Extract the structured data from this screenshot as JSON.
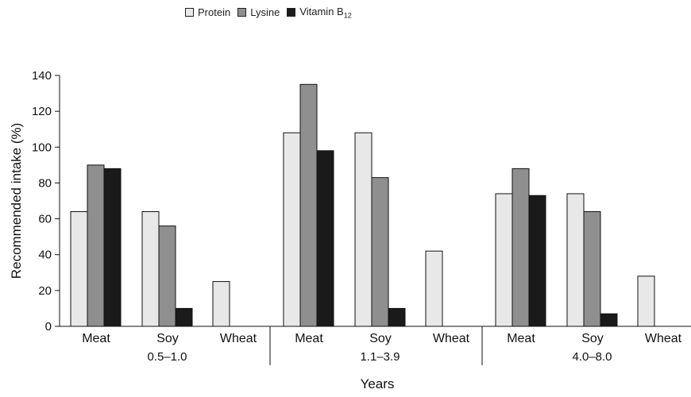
{
  "chart_data": {
    "type": "bar",
    "title": "",
    "xlabel": "Years",
    "ylabel": "Recommended intake (%)",
    "ylim": [
      0,
      140
    ],
    "yticks": [
      0,
      20,
      40,
      60,
      80,
      100,
      120,
      140
    ],
    "groups": [
      {
        "label": "0.5–1.0",
        "categories": [
          "Meat",
          "Soy",
          "Wheat"
        ]
      },
      {
        "label": "1.1–3.9",
        "categories": [
          "Meat",
          "Soy",
          "Wheat"
        ]
      },
      {
        "label": "4.0–8.0",
        "categories": [
          "Meat",
          "Soy",
          "Wheat"
        ]
      }
    ],
    "series": [
      {
        "name": "Protein",
        "color": "#e8e8e8",
        "values": [
          64,
          64,
          25,
          108,
          108,
          42,
          74,
          74,
          28
        ]
      },
      {
        "name": "Lysine",
        "color": "#8f8f8f",
        "values": [
          90,
          56,
          0,
          135,
          83,
          0,
          88,
          64,
          0
        ]
      },
      {
        "name": "Vitamin B12",
        "color": "#1a1a1a",
        "values": [
          88,
          10,
          0,
          98,
          10,
          0,
          73,
          7,
          0
        ]
      }
    ],
    "legend": {
      "placement": "top",
      "items": [
        {
          "base": "Protein",
          "sub": ""
        },
        {
          "base": "Lysine",
          "sub": ""
        },
        {
          "base": "Vitamin B",
          "sub": "12"
        }
      ]
    },
    "grid": false
  }
}
